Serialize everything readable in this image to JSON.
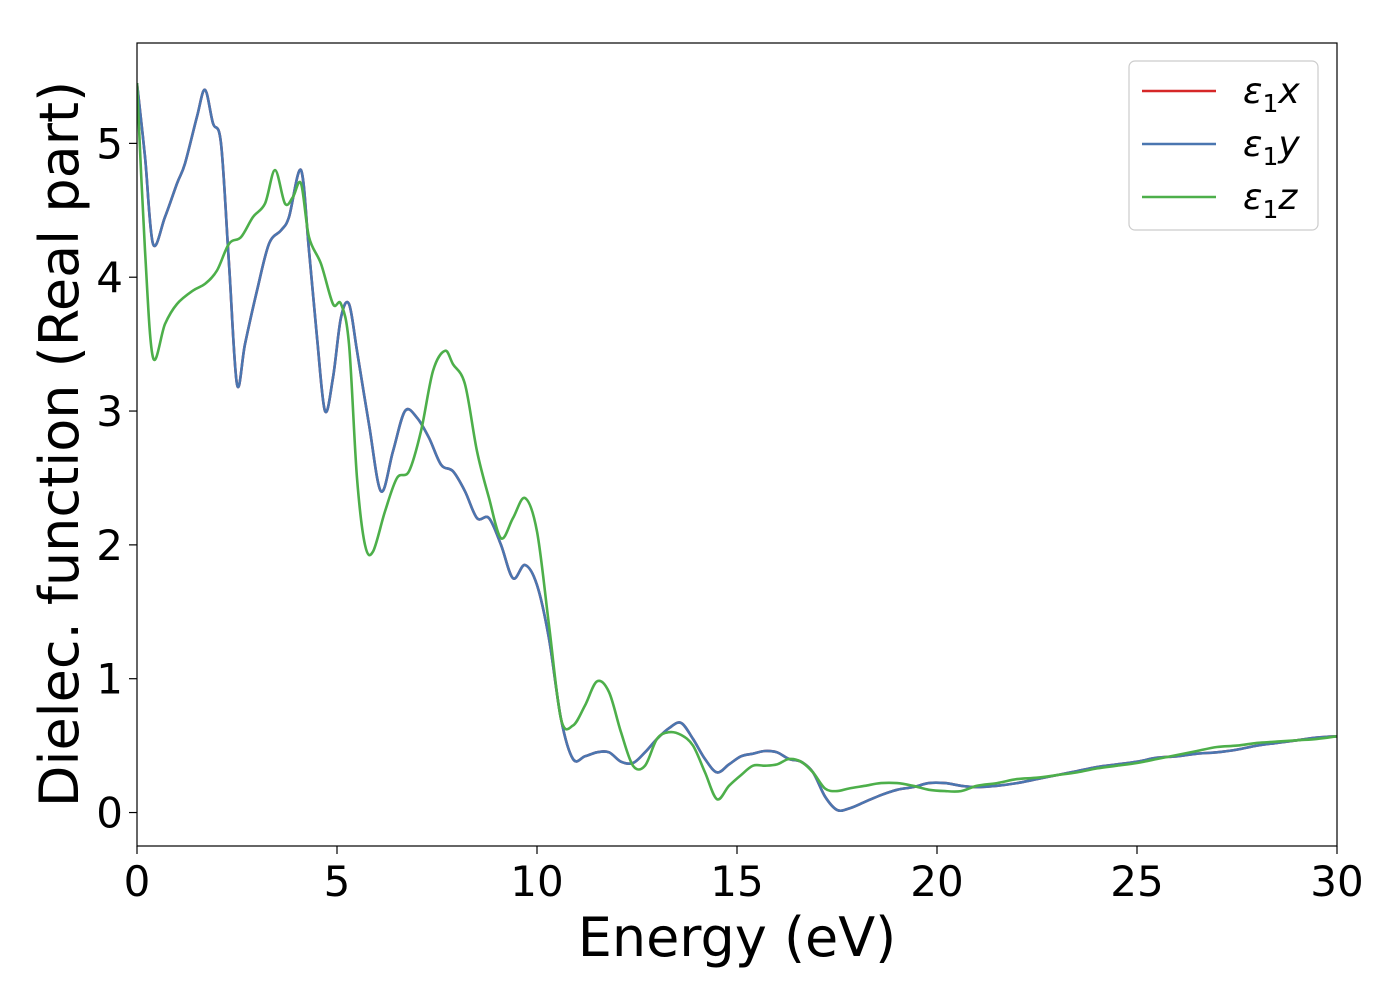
{
  "chart_data": {
    "type": "line",
    "xlabel": "Energy (eV)",
    "ylabel": "Dielec. function (Real part)",
    "xlim": [
      0,
      30
    ],
    "ylim": [
      -0.25,
      5.75
    ],
    "xticks": [
      0,
      5,
      10,
      15,
      20,
      25,
      30
    ],
    "yticks": [
      0,
      1,
      2,
      3,
      4,
      5
    ],
    "grid": false,
    "legend_position": "top-right",
    "series": [
      {
        "name": "ε1x",
        "legend_base": "ε",
        "legend_sub": "1",
        "legend_var": "x",
        "color": "#d62728",
        "x": [
          0,
          0.2,
          0.4,
          0.7,
          1.0,
          1.2,
          1.5,
          1.7,
          1.9,
          2.1,
          2.3,
          2.5,
          2.7,
          3.0,
          3.3,
          3.6,
          3.8,
          4.1,
          4.3,
          4.5,
          4.7,
          4.9,
          5.1,
          5.3,
          5.5,
          5.8,
          6.1,
          6.4,
          6.7,
          7.0,
          7.3,
          7.6,
          7.9,
          8.2,
          8.5,
          8.8,
          9.1,
          9.4,
          9.7,
          10.0,
          10.3,
          10.6,
          10.9,
          11.2,
          11.5,
          11.8,
          12.1,
          12.4,
          12.7,
          13.0,
          13.3,
          13.6,
          13.9,
          14.2,
          14.5,
          14.8,
          15.1,
          15.4,
          15.7,
          16.0,
          16.3,
          16.6,
          16.9,
          17.2,
          17.5,
          17.8,
          18.2,
          18.6,
          19.0,
          19.4,
          19.8,
          20.2,
          20.6,
          21.0,
          21.5,
          22.0,
          22.5,
          23.0,
          23.5,
          24.0,
          24.5,
          25.0,
          25.5,
          26.0,
          26.5,
          27.0,
          27.5,
          28.0,
          28.5,
          29.0,
          29.5,
          30.0
        ],
        "y": [
          5.45,
          4.9,
          4.25,
          4.45,
          4.7,
          4.85,
          5.2,
          5.4,
          5.15,
          5.0,
          4.1,
          3.2,
          3.5,
          3.9,
          4.25,
          4.35,
          4.45,
          4.8,
          4.2,
          3.55,
          3.0,
          3.25,
          3.7,
          3.8,
          3.45,
          2.9,
          2.4,
          2.7,
          3.0,
          2.95,
          2.8,
          2.6,
          2.55,
          2.4,
          2.2,
          2.2,
          2.0,
          1.75,
          1.85,
          1.7,
          1.3,
          0.7,
          0.4,
          0.42,
          0.45,
          0.45,
          0.38,
          0.37,
          0.45,
          0.55,
          0.63,
          0.67,
          0.55,
          0.4,
          0.3,
          0.36,
          0.42,
          0.44,
          0.46,
          0.45,
          0.4,
          0.38,
          0.3,
          0.12,
          0.02,
          0.03,
          0.08,
          0.13,
          0.17,
          0.19,
          0.22,
          0.22,
          0.2,
          0.19,
          0.2,
          0.22,
          0.25,
          0.28,
          0.31,
          0.34,
          0.36,
          0.38,
          0.41,
          0.42,
          0.44,
          0.45,
          0.47,
          0.5,
          0.52,
          0.54,
          0.56,
          0.57
        ]
      },
      {
        "name": "ε1y",
        "legend_base": "ε",
        "legend_sub": "1",
        "legend_var": "y",
        "color": "#4a76b0",
        "x": [
          0,
          0.2,
          0.4,
          0.7,
          1.0,
          1.2,
          1.5,
          1.7,
          1.9,
          2.1,
          2.3,
          2.5,
          2.7,
          3.0,
          3.3,
          3.6,
          3.8,
          4.1,
          4.3,
          4.5,
          4.7,
          4.9,
          5.1,
          5.3,
          5.5,
          5.8,
          6.1,
          6.4,
          6.7,
          7.0,
          7.3,
          7.6,
          7.9,
          8.2,
          8.5,
          8.8,
          9.1,
          9.4,
          9.7,
          10.0,
          10.3,
          10.6,
          10.9,
          11.2,
          11.5,
          11.8,
          12.1,
          12.4,
          12.7,
          13.0,
          13.3,
          13.6,
          13.9,
          14.2,
          14.5,
          14.8,
          15.1,
          15.4,
          15.7,
          16.0,
          16.3,
          16.6,
          16.9,
          17.2,
          17.5,
          17.8,
          18.2,
          18.6,
          19.0,
          19.4,
          19.8,
          20.2,
          20.6,
          21.0,
          21.5,
          22.0,
          22.5,
          23.0,
          23.5,
          24.0,
          24.5,
          25.0,
          25.5,
          26.0,
          26.5,
          27.0,
          27.5,
          28.0,
          28.5,
          29.0,
          29.5,
          30.0
        ],
        "y": [
          5.45,
          4.9,
          4.25,
          4.45,
          4.7,
          4.85,
          5.2,
          5.4,
          5.15,
          5.0,
          4.1,
          3.2,
          3.5,
          3.9,
          4.25,
          4.35,
          4.45,
          4.8,
          4.2,
          3.55,
          3.0,
          3.25,
          3.7,
          3.8,
          3.45,
          2.9,
          2.4,
          2.7,
          3.0,
          2.95,
          2.8,
          2.6,
          2.55,
          2.4,
          2.2,
          2.2,
          2.0,
          1.75,
          1.85,
          1.7,
          1.3,
          0.7,
          0.4,
          0.42,
          0.45,
          0.45,
          0.38,
          0.37,
          0.45,
          0.55,
          0.63,
          0.67,
          0.55,
          0.4,
          0.3,
          0.36,
          0.42,
          0.44,
          0.46,
          0.45,
          0.4,
          0.38,
          0.3,
          0.12,
          0.02,
          0.03,
          0.08,
          0.13,
          0.17,
          0.19,
          0.22,
          0.22,
          0.2,
          0.19,
          0.2,
          0.22,
          0.25,
          0.28,
          0.31,
          0.34,
          0.36,
          0.38,
          0.41,
          0.42,
          0.44,
          0.45,
          0.47,
          0.5,
          0.52,
          0.54,
          0.56,
          0.57
        ]
      },
      {
        "name": "ε1z",
        "legend_base": "ε",
        "legend_sub": "1",
        "legend_var": "z",
        "color": "#4daf4a",
        "x": [
          0,
          0.2,
          0.4,
          0.7,
          1.0,
          1.4,
          1.7,
          2.0,
          2.3,
          2.6,
          2.9,
          3.2,
          3.45,
          3.7,
          3.9,
          4.1,
          4.3,
          4.6,
          4.9,
          5.1,
          5.3,
          5.5,
          5.7,
          5.9,
          6.2,
          6.5,
          6.8,
          7.1,
          7.4,
          7.7,
          7.9,
          8.2,
          8.5,
          8.8,
          9.1,
          9.4,
          9.7,
          10.0,
          10.3,
          10.6,
          10.9,
          11.2,
          11.5,
          11.8,
          12.1,
          12.4,
          12.7,
          13.0,
          13.3,
          13.6,
          13.9,
          14.2,
          14.5,
          14.8,
          15.1,
          15.4,
          15.7,
          16.0,
          16.3,
          16.6,
          16.9,
          17.2,
          17.5,
          17.8,
          18.2,
          18.6,
          19.0,
          19.4,
          19.8,
          20.2,
          20.6,
          21.0,
          21.5,
          22.0,
          22.5,
          23.0,
          23.5,
          24.0,
          24.5,
          25.0,
          25.5,
          26.0,
          26.5,
          27.0,
          27.5,
          28.0,
          28.5,
          29.0,
          29.5,
          30.0
        ],
        "y": [
          5.45,
          4.2,
          3.4,
          3.65,
          3.8,
          3.9,
          3.95,
          4.05,
          4.25,
          4.3,
          4.45,
          4.55,
          4.8,
          4.55,
          4.6,
          4.7,
          4.3,
          4.1,
          3.8,
          3.8,
          3.5,
          2.5,
          2.0,
          1.95,
          2.25,
          2.5,
          2.55,
          2.85,
          3.3,
          3.45,
          3.35,
          3.2,
          2.7,
          2.35,
          2.05,
          2.2,
          2.35,
          2.1,
          1.4,
          0.7,
          0.65,
          0.8,
          0.98,
          0.9,
          0.6,
          0.35,
          0.35,
          0.55,
          0.6,
          0.58,
          0.5,
          0.3,
          0.1,
          0.2,
          0.28,
          0.35,
          0.35,
          0.36,
          0.4,
          0.38,
          0.3,
          0.18,
          0.16,
          0.18,
          0.2,
          0.22,
          0.22,
          0.2,
          0.17,
          0.16,
          0.16,
          0.2,
          0.22,
          0.25,
          0.26,
          0.28,
          0.3,
          0.33,
          0.35,
          0.37,
          0.4,
          0.43,
          0.46,
          0.49,
          0.5,
          0.52,
          0.53,
          0.54,
          0.55,
          0.57
        ]
      }
    ]
  }
}
